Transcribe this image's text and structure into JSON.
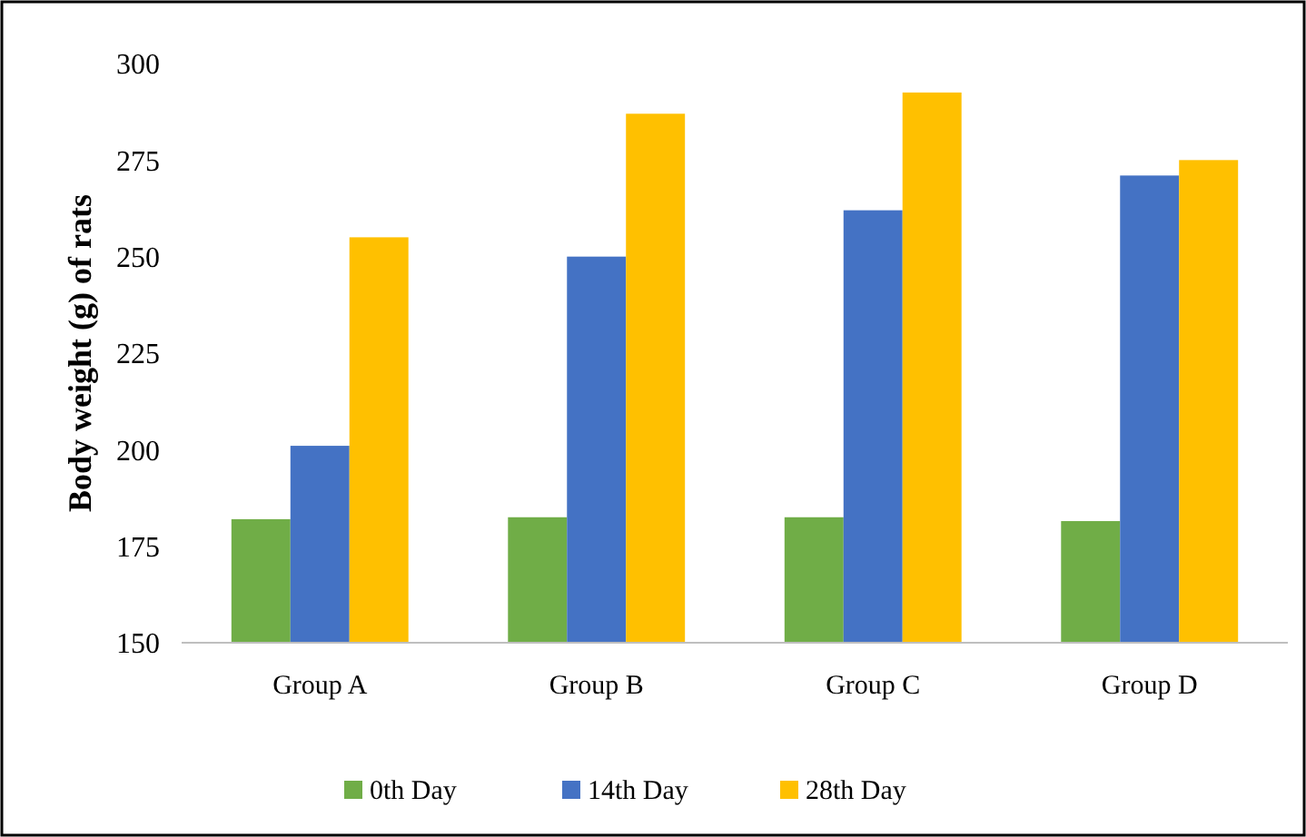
{
  "chart_data": {
    "type": "bar",
    "ylabel": "Body weight (g) of rats",
    "categories": [
      "Group A",
      "Group B",
      "Group C",
      "Group D"
    ],
    "series": [
      {
        "name": "0th Day",
        "color": "#70ad47",
        "values": [
          182,
          182.5,
          182.5,
          181.5
        ]
      },
      {
        "name": "14th Day",
        "color": "#4472c4",
        "values": [
          201,
          250,
          262,
          271
        ]
      },
      {
        "name": "28th Day",
        "color": "#ffc000",
        "values": [
          255,
          287,
          292.5,
          275
        ]
      }
    ],
    "ylim": [
      150,
      300
    ],
    "yticks": [
      150,
      175,
      200,
      225,
      250,
      275,
      300
    ],
    "grid": false,
    "legend": "bottom"
  }
}
